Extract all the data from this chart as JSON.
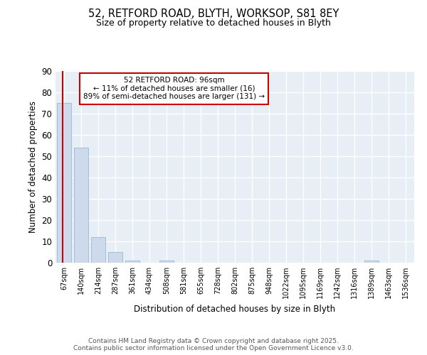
{
  "title1": "52, RETFORD ROAD, BLYTH, WORKSOP, S81 8EY",
  "title2": "Size of property relative to detached houses in Blyth",
  "xlabel": "Distribution of detached houses by size in Blyth",
  "ylabel": "Number of detached properties",
  "categories": [
    "67sqm",
    "140sqm",
    "214sqm",
    "287sqm",
    "361sqm",
    "434sqm",
    "508sqm",
    "581sqm",
    "655sqm",
    "728sqm",
    "802sqm",
    "875sqm",
    "948sqm",
    "1022sqm",
    "1095sqm",
    "1169sqm",
    "1242sqm",
    "1316sqm",
    "1389sqm",
    "1463sqm",
    "1536sqm"
  ],
  "values": [
    75,
    54,
    12,
    5,
    1,
    0,
    1,
    0,
    0,
    0,
    0,
    0,
    0,
    0,
    0,
    0,
    0,
    0,
    1,
    0,
    0
  ],
  "bar_color": "#ccdaeb",
  "bar_edge_color": "#aac0d8",
  "vline_color": "#cc0000",
  "annotation_text": "52 RETFORD ROAD: 96sqm\n← 11% of detached houses are smaller (16)\n89% of semi-detached houses are larger (131) →",
  "annotation_box_color": "#ffffff",
  "annotation_box_edge": "#cc0000",
  "ylim": [
    0,
    90
  ],
  "yticks": [
    0,
    10,
    20,
    30,
    40,
    50,
    60,
    70,
    80,
    90
  ],
  "footer": "Contains HM Land Registry data © Crown copyright and database right 2025.\nContains public sector information licensed under the Open Government Licence v3.0.",
  "bg_color": "#ffffff",
  "plot_bg_color": "#e8eef5",
  "grid_color": "#ffffff"
}
